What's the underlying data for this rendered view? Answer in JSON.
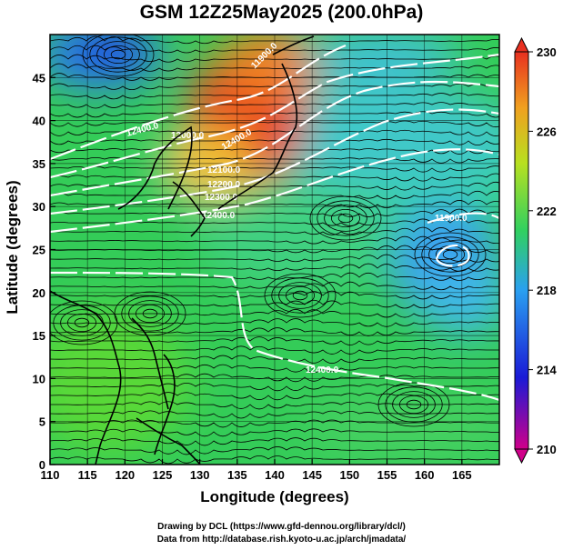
{
  "title": "GSM 12Z25May2025 (200.0hPa)",
  "axes": {
    "x_label": "Longitude (degrees)",
    "y_label": "Latitude  (degrees)",
    "x_ticks": [
      "110",
      "115",
      "120",
      "125",
      "130",
      "135",
      "140",
      "145",
      "150",
      "155",
      "160",
      "165"
    ],
    "y_ticks": [
      "0",
      "5",
      "10",
      "15",
      "20",
      "25",
      "30",
      "35",
      "40",
      "45"
    ]
  },
  "colorbar": {
    "tick_labels": [
      "210",
      "214",
      "218",
      "222",
      "226",
      "230"
    ],
    "colors": [
      "#d0008a",
      "#1a1ad6",
      "#2aa0f0",
      "#30d060",
      "#b8e020",
      "#f0a020",
      "#e83020"
    ]
  },
  "contour_labels": [
    "11900.0",
    "11900.0",
    "12000.0",
    "12100.0",
    "12200.0",
    "12300.0",
    "12400.0",
    "12400.0",
    "12400.0",
    "12400.0"
  ],
  "credits": {
    "line1": "Drawing by DCL (https://www.gfd-dennou.org/library/dcl/)",
    "line2": "Data from http://database.rish.kyoto-u.ac.jp/arch/jmadata/"
  },
  "chart_data": {
    "type": "heatmap",
    "title": "GSM 12Z25May2025 (200.0hPa)",
    "xlabel": "Longitude (degrees)",
    "ylabel": "Latitude  (degrees)",
    "xlim": [
      110,
      170
    ],
    "ylim": [
      0,
      50
    ],
    "x_ticks": [
      110,
      115,
      120,
      125,
      130,
      135,
      140,
      145,
      150,
      155,
      160,
      165
    ],
    "y_ticks": [
      0,
      5,
      10,
      15,
      20,
      25,
      30,
      35,
      40,
      45
    ],
    "colorbar_range": [
      210,
      230
    ],
    "colorbar_ticks": [
      210,
      214,
      218,
      222,
      226,
      230
    ],
    "field_features": [
      {
        "lon": 118,
        "lat": 48,
        "value": 215
      },
      {
        "lon": 136,
        "lat": 42,
        "value": 229
      },
      {
        "lon": 162,
        "lat": 27,
        "value": 217
      },
      {
        "lon": 150,
        "lat": 22,
        "value": 220
      },
      {
        "lon": 125,
        "lat": 10,
        "value": 223
      }
    ],
    "contours": [
      {
        "label": "11900.0",
        "lon": 167,
        "lat": 31
      },
      {
        "label": "12400.0",
        "lon": 150,
        "lat": 12
      }
    ],
    "grid": true
  }
}
